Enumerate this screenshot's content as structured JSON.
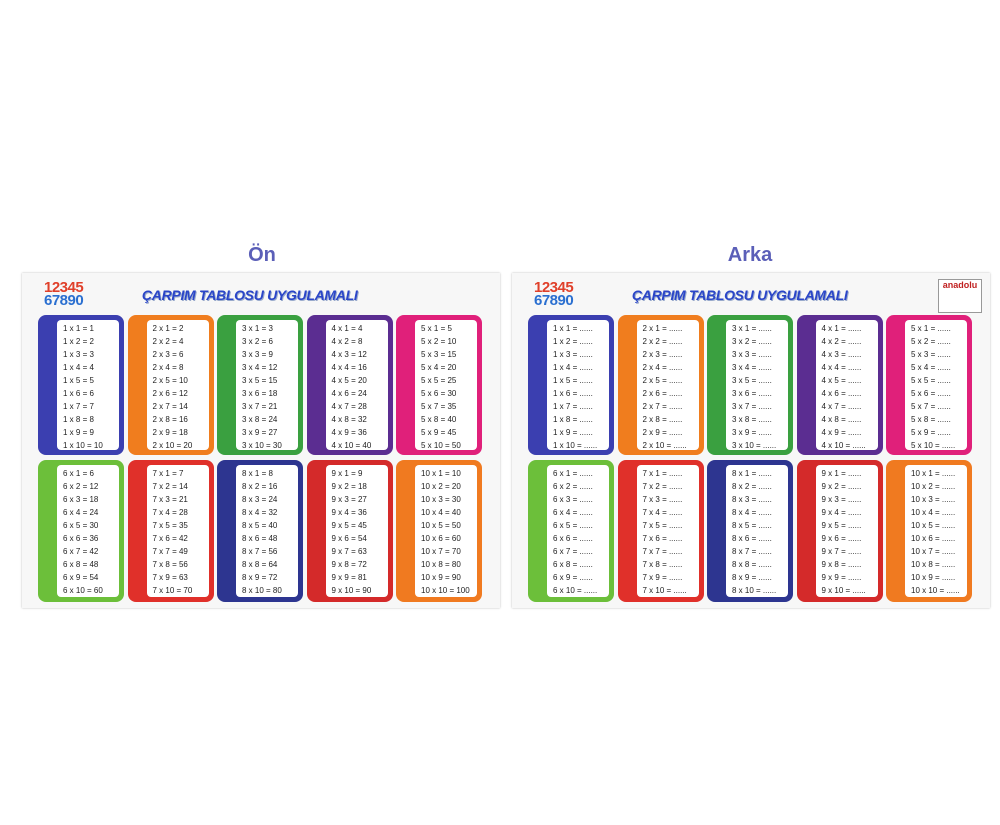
{
  "labels": {
    "front": "Ön",
    "back": "Arka"
  },
  "colors": [
    "#3b3fb0",
    "#f07d1e",
    "#3aa040",
    "#5b2d91",
    "#e0207a",
    "#6cbf3a",
    "#e0302a",
    "#2d3590",
    "#d42a2a",
    "#f07a20"
  ],
  "boards": [
    {
      "title": "ÇARPIM TABLOSU UYGULAMALI",
      "digits": [
        "12345",
        "67890"
      ],
      "tables": [
        [
          "1 x 1 = 1",
          "1 x 2 = 2",
          "1 x 3 = 3",
          "1 x 4 = 4",
          "1 x 5 = 5",
          "1 x 6 = 6",
          "1 x 7 = 7",
          "1 x 8 = 8",
          "1 x 9 = 9",
          "1 x 10 = 10"
        ],
        [
          "2 x 1 = 2",
          "2 x 2 = 4",
          "2 x 3 = 6",
          "2 x 4 = 8",
          "2 x 5 = 10",
          "2 x 6 = 12",
          "2 x 7 = 14",
          "2 x 8 = 16",
          "2 x 9 = 18",
          "2 x 10 = 20"
        ],
        [
          "3 x 1 = 3",
          "3 x 2 = 6",
          "3 x 3 = 9",
          "3 x 4 = 12",
          "3 x 5 = 15",
          "3 x 6 = 18",
          "3 x 7 = 21",
          "3 x 8 = 24",
          "3 x 9 = 27",
          "3 x 10 = 30"
        ],
        [
          "4 x 1 = 4",
          "4 x 2 = 8",
          "4 x 3 = 12",
          "4 x 4 = 16",
          "4 x 5 = 20",
          "4 x 6 = 24",
          "4 x 7 = 28",
          "4 x 8 = 32",
          "4 x 9 = 36",
          "4 x 10 = 40"
        ],
        [
          "5 x 1 = 5",
          "5 x 2 = 10",
          "5 x 3 = 15",
          "5 x 4 = 20",
          "5 x 5 = 25",
          "5 x 6 = 30",
          "5 x 7 = 35",
          "5 x 8 = 40",
          "5 x 9 = 45",
          "5 x 10 = 50"
        ],
        [
          "6 x 1 = 6",
          "6 x 2 = 12",
          "6 x 3 = 18",
          "6 x 4 = 24",
          "6 x 5 = 30",
          "6 x 6 = 36",
          "6 x 7 = 42",
          "6 x 8 = 48",
          "6 x 9 = 54",
          "6 x 10 = 60"
        ],
        [
          "7 x 1 = 7",
          "7 x 2 = 14",
          "7 x 3 = 21",
          "7 x 4 = 28",
          "7 x 5 = 35",
          "7 x 6 = 42",
          "7 x 7 = 49",
          "7 x 8 = 56",
          "7 x 9 = 63",
          "7 x 10 = 70"
        ],
        [
          "8 x 1 = 8",
          "8 x 2 = 16",
          "8 x 3 = 24",
          "8 x 4 = 32",
          "8 x 5 = 40",
          "8 x 6 = 48",
          "8 x 7 = 56",
          "8 x 8 = 64",
          "8 x 9 = 72",
          "8 x 10 = 80"
        ],
        [
          "9 x 1 = 9",
          "9 x 2 = 18",
          "9 x 3 = 27",
          "9 x 4 = 36",
          "9 x 5 = 45",
          "9 x 6 = 54",
          "9 x 7 = 63",
          "9 x 8 = 72",
          "9 x 9 = 81",
          "9 x 10 = 90"
        ],
        [
          "10 x 1 = 10",
          "10 x 2 = 20",
          "10 x 3 = 30",
          "10 x 4 = 40",
          "10 x 5 = 50",
          "10 x 6 = 60",
          "10 x 7 = 70",
          "10 x 8 = 80",
          "10 x 9 = 90",
          "10 x 10 = 100"
        ]
      ]
    },
    {
      "title": "ÇARPIM TABLOSU UYGULAMALI",
      "digits": [
        "12345",
        "67890"
      ],
      "brand": "anadolu",
      "tables": [
        [
          "1 x 1 = ......",
          "1 x 2 = ......",
          "1 x 3 = ......",
          "1 x 4 = ......",
          "1 x 5 = ......",
          "1 x 6 = ......",
          "1 x 7 = ......",
          "1 x 8 = ......",
          "1 x 9 = ......",
          "1 x 10 = ......"
        ],
        [
          "2 x 1 = ......",
          "2 x 2 = ......",
          "2 x 3 = ......",
          "2 x 4 = ......",
          "2 x 5 = ......",
          "2 x 6 = ......",
          "2 x 7 = ......",
          "2 x 8 = ......",
          "2 x 9 = ......",
          "2 x 10 = ......"
        ],
        [
          "3 x 1 = ......",
          "3 x 2 = ......",
          "3 x 3 = ......",
          "3 x 4 = ......",
          "3 x 5 = ......",
          "3 x 6 = ......",
          "3 x 7 = ......",
          "3 x 8 = ......",
          "3 x 9 = ......",
          "3 x 10 = ......"
        ],
        [
          "4 x 1 = ......",
          "4 x 2 = ......",
          "4 x 3 = ......",
          "4 x 4 = ......",
          "4 x 5 = ......",
          "4 x 6 = ......",
          "4 x 7 = ......",
          "4 x 8 = ......",
          "4 x 9 = ......",
          "4 x 10 = ......"
        ],
        [
          "5 x 1 = ......",
          "5 x 2 = ......",
          "5 x 3 = ......",
          "5 x 4 = ......",
          "5 x 5 = ......",
          "5 x 6 = ......",
          "5 x 7 = ......",
          "5 x 8 = ......",
          "5 x 9 = ......",
          "5 x 10 = ......"
        ],
        [
          "6 x 1 = ......",
          "6 x 2 = ......",
          "6 x 3 = ......",
          "6 x 4 = ......",
          "6 x 5 = ......",
          "6 x 6 = ......",
          "6 x 7 = ......",
          "6 x 8 = ......",
          "6 x 9 = ......",
          "6 x 10 = ......"
        ],
        [
          "7 x 1 = ......",
          "7 x 2 = ......",
          "7 x 3 = ......",
          "7 x 4 = ......",
          "7 x 5 = ......",
          "7 x 6 = ......",
          "7 x 7 = ......",
          "7 x 8 = ......",
          "7 x 9 = ......",
          "7 x 10 = ......"
        ],
        [
          "8 x 1 = ......",
          "8 x 2 = ......",
          "8 x 3 = ......",
          "8 x 4 = ......",
          "8 x 5 = ......",
          "8 x 6 = ......",
          "8 x 7 = ......",
          "8 x 8 = ......",
          "8 x 9 = ......",
          "8 x 10 = ......"
        ],
        [
          "9 x 1 = ......",
          "9 x 2 = ......",
          "9 x 3 = ......",
          "9 x 4 = ......",
          "9 x 5 = ......",
          "9 x 6 = ......",
          "9 x 7 = ......",
          "9 x 8 = ......",
          "9 x 9 = ......",
          "9 x 10 = ......"
        ],
        [
          "10 x 1 = ......",
          "10 x 2 = ......",
          "10 x 3 = ......",
          "10 x 4 = ......",
          "10 x 5 = ......",
          "10 x 6 = ......",
          "10 x 7 = ......",
          "10 x 8 = ......",
          "10 x 9 = ......",
          "10 x 10 = ......"
        ]
      ]
    }
  ]
}
